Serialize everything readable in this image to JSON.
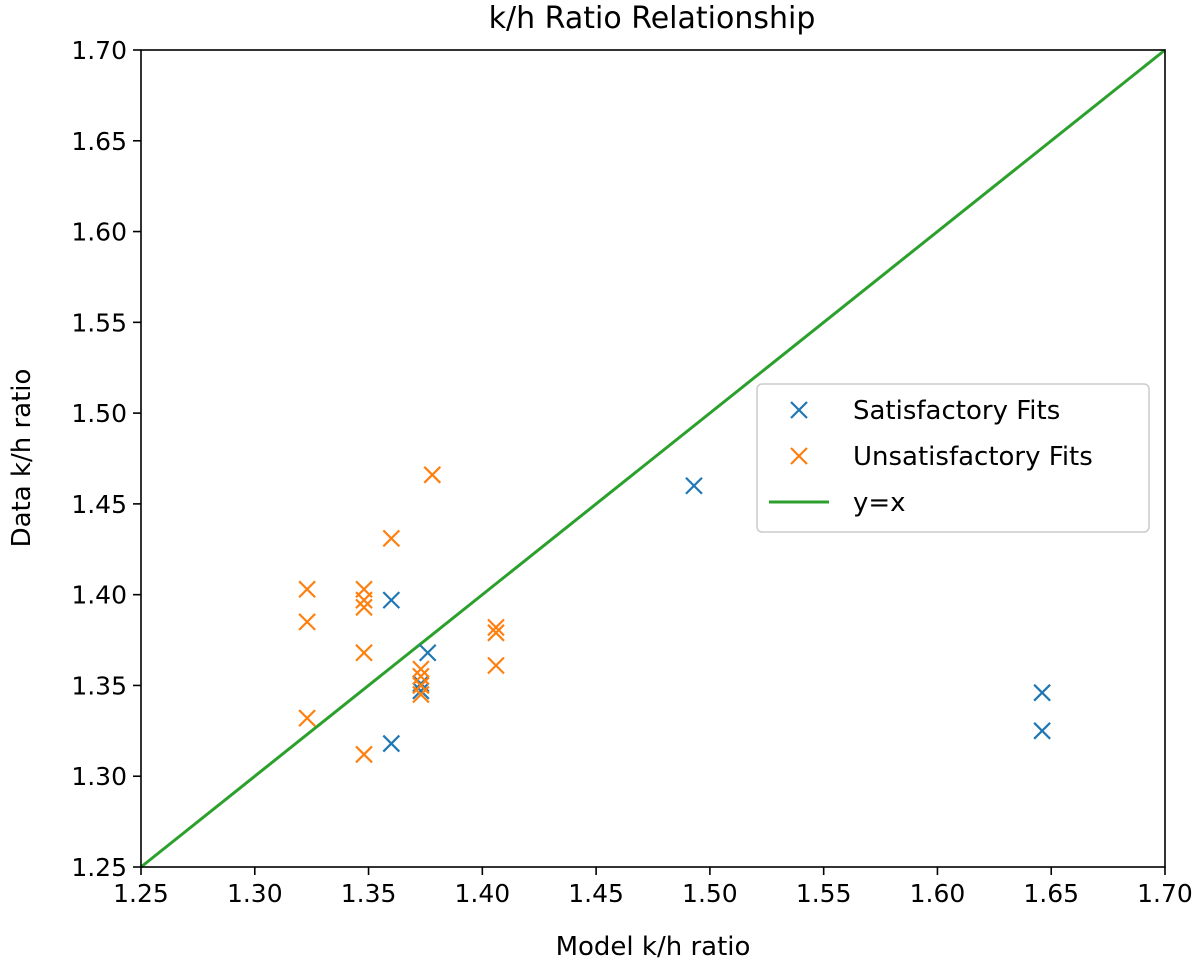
{
  "chart_data": {
    "type": "scatter",
    "title": "k/h Ratio Relationship",
    "xlabel": "Model k/h ratio",
    "ylabel": "Data k/h ratio",
    "xlim": [
      1.25,
      1.7
    ],
    "ylim": [
      1.25,
      1.7
    ],
    "xticks": [
      "1.25",
      "1.30",
      "1.35",
      "1.40",
      "1.45",
      "1.50",
      "1.55",
      "1.60",
      "1.65",
      "1.70"
    ],
    "yticks": [
      "1.25",
      "1.30",
      "1.35",
      "1.40",
      "1.45",
      "1.50",
      "1.55",
      "1.60",
      "1.65",
      "1.70"
    ],
    "grid": false,
    "legend_position": "center-right",
    "series": [
      {
        "name": "Satisfactory Fits",
        "color": "#1f77b4",
        "marker": "x",
        "points": [
          [
            1.36,
            1.397
          ],
          [
            1.36,
            1.318
          ],
          [
            1.376,
            1.368
          ],
          [
            1.373,
            1.351
          ],
          [
            1.373,
            1.347
          ],
          [
            1.493,
            1.46
          ],
          [
            1.646,
            1.346
          ],
          [
            1.646,
            1.325
          ]
        ]
      },
      {
        "name": "Unsatisfactory Fits",
        "color": "#ff7f0e",
        "marker": "x",
        "points": [
          [
            1.323,
            1.403
          ],
          [
            1.323,
            1.385
          ],
          [
            1.323,
            1.332
          ],
          [
            1.348,
            1.403
          ],
          [
            1.348,
            1.397
          ],
          [
            1.348,
            1.393
          ],
          [
            1.348,
            1.368
          ],
          [
            1.348,
            1.312
          ],
          [
            1.36,
            1.431
          ],
          [
            1.378,
            1.466
          ],
          [
            1.373,
            1.359
          ],
          [
            1.373,
            1.355
          ],
          [
            1.373,
            1.35
          ],
          [
            1.373,
            1.345
          ],
          [
            1.406,
            1.382
          ],
          [
            1.406,
            1.379
          ],
          [
            1.406,
            1.361
          ]
        ]
      },
      {
        "name": "y=x",
        "color": "#2ca02c",
        "type": "line",
        "points": [
          [
            1.25,
            1.25
          ],
          [
            1.7,
            1.7
          ]
        ]
      }
    ]
  }
}
